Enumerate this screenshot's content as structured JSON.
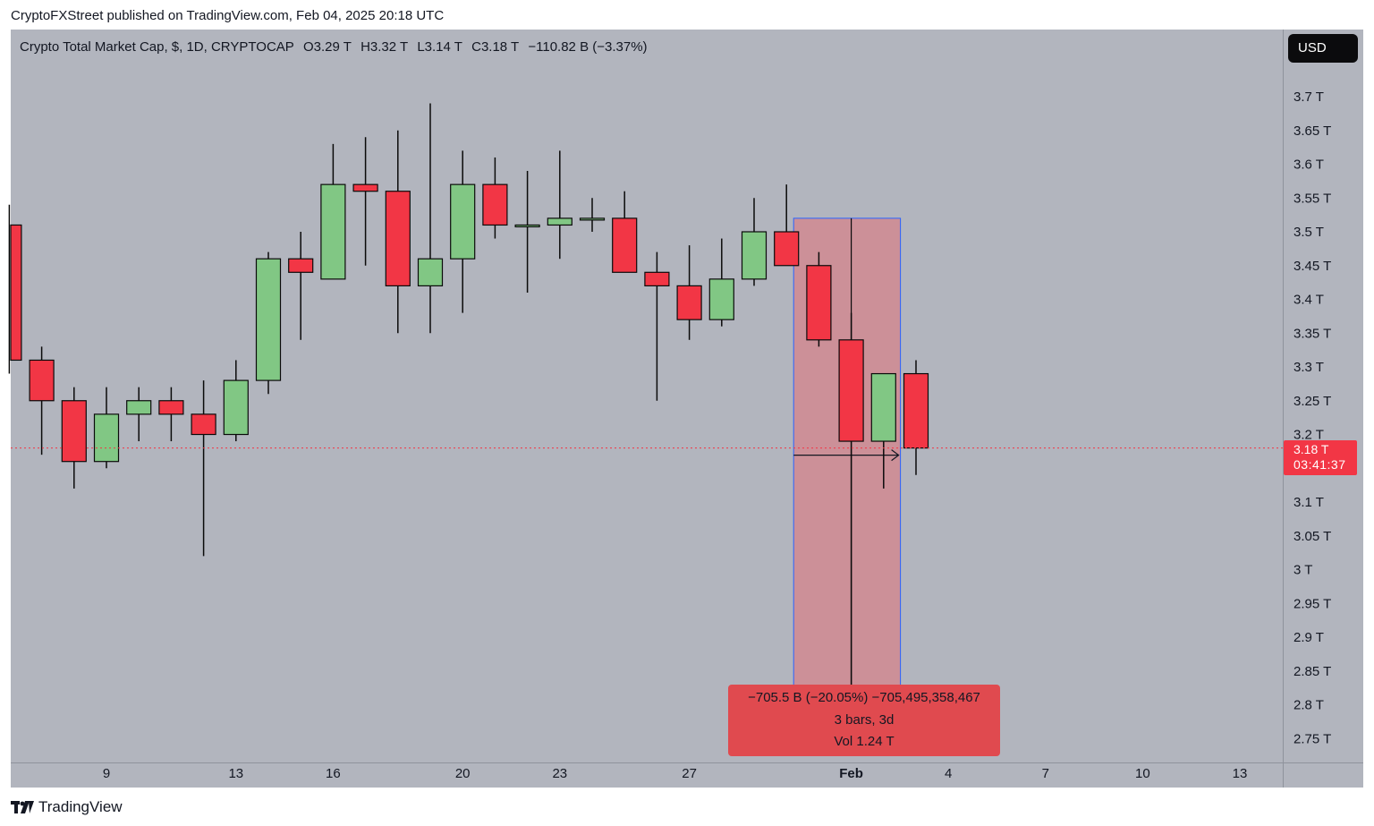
{
  "header": {
    "publisher_line": "CryptoFXStreet published on TradingView.com, Feb 04, 2025 20:18 UTC"
  },
  "legend": {
    "symbol": "Crypto Total Market Cap, $, 1D, CRYPTOCAP",
    "open": "O3.29 T",
    "high": "H3.32 T",
    "low": "L3.14 T",
    "close": "C3.18 T",
    "change": "−110.82 B (−3.37%)"
  },
  "toolbar": {
    "currency": "USD"
  },
  "last_price": {
    "value": "3.18 T",
    "countdown": "03:41:37"
  },
  "measure": {
    "line1": "−705.5 B (−20.05%) −705,495,358,467",
    "line2": "3 bars, 3d",
    "line3": "Vol 1.24 T"
  },
  "footer": {
    "brand": "TradingView"
  },
  "colors": {
    "up": "#81c784",
    "down": "#f23645",
    "background": "#b2b5be",
    "measure_fill": "#d08a92",
    "measure_border": "#2962ff"
  },
  "chart_data": {
    "type": "candlestick",
    "title": "Crypto Total Market Cap, $, 1D, CRYPTOCAP",
    "y_unit": "T",
    "ylim": [
      2.73,
      3.77
    ],
    "y_ticks": [
      "2.75 T",
      "2.8 T",
      "2.85 T",
      "2.9 T",
      "2.95 T",
      "3 T",
      "3.05 T",
      "3.1 T",
      "3.2 T",
      "3.25 T",
      "3.3 T",
      "3.35 T",
      "3.4 T",
      "3.45 T",
      "3.5 T",
      "3.55 T",
      "3.6 T",
      "3.65 T",
      "3.7 T"
    ],
    "x_ticks": [
      "9",
      "13",
      "16",
      "20",
      "23",
      "27",
      "Feb",
      "4",
      "7",
      "10",
      "13"
    ],
    "x_tick_days": [
      9,
      13,
      16,
      20,
      23,
      27,
      32,
      35,
      38,
      41,
      44
    ],
    "candles": [
      {
        "day": 5,
        "o": 3.41,
        "h": 3.5,
        "l": 3.41,
        "c": 3.5
      },
      {
        "day": 6,
        "o": 3.51,
        "h": 3.54,
        "l": 3.29,
        "c": 3.31
      },
      {
        "day": 7,
        "o": 3.31,
        "h": 3.33,
        "l": 3.17,
        "c": 3.25
      },
      {
        "day": 8,
        "o": 3.25,
        "h": 3.27,
        "l": 3.12,
        "c": 3.16
      },
      {
        "day": 9,
        "o": 3.16,
        "h": 3.27,
        "l": 3.15,
        "c": 3.23
      },
      {
        "day": 10,
        "o": 3.23,
        "h": 3.27,
        "l": 3.19,
        "c": 3.25
      },
      {
        "day": 11,
        "o": 3.25,
        "h": 3.27,
        "l": 3.19,
        "c": 3.23
      },
      {
        "day": 12,
        "o": 3.23,
        "h": 3.28,
        "l": 3.02,
        "c": 3.2
      },
      {
        "day": 13,
        "o": 3.2,
        "h": 3.31,
        "l": 3.19,
        "c": 3.28
      },
      {
        "day": 14,
        "o": 3.28,
        "h": 3.47,
        "l": 3.26,
        "c": 3.46
      },
      {
        "day": 15,
        "o": 3.46,
        "h": 3.5,
        "l": 3.34,
        "c": 3.44
      },
      {
        "day": 16,
        "o": 3.43,
        "h": 3.63,
        "l": 3.43,
        "c": 3.57
      },
      {
        "day": 17,
        "o": 3.57,
        "h": 3.64,
        "l": 3.45,
        "c": 3.56
      },
      {
        "day": 18,
        "o": 3.56,
        "h": 3.65,
        "l": 3.35,
        "c": 3.42
      },
      {
        "day": 19,
        "o": 3.42,
        "h": 3.69,
        "l": 3.35,
        "c": 3.46
      },
      {
        "day": 20,
        "o": 3.46,
        "h": 3.62,
        "l": 3.38,
        "c": 3.57
      },
      {
        "day": 21,
        "o": 3.57,
        "h": 3.61,
        "l": 3.49,
        "c": 3.51
      },
      {
        "day": 22,
        "o": 3.51,
        "h": 3.59,
        "l": 3.41,
        "c": 3.51
      },
      {
        "day": 23,
        "o": 3.51,
        "h": 3.62,
        "l": 3.46,
        "c": 3.52
      },
      {
        "day": 24,
        "o": 3.52,
        "h": 3.55,
        "l": 3.5,
        "c": 3.52
      },
      {
        "day": 25,
        "o": 3.52,
        "h": 3.56,
        "l": 3.44,
        "c": 3.44
      },
      {
        "day": 26,
        "o": 3.44,
        "h": 3.47,
        "l": 3.25,
        "c": 3.42
      },
      {
        "day": 27,
        "o": 3.42,
        "h": 3.48,
        "l": 3.34,
        "c": 3.37
      },
      {
        "day": 28,
        "o": 3.37,
        "h": 3.49,
        "l": 3.36,
        "c": 3.43
      },
      {
        "day": 29,
        "o": 3.43,
        "h": 3.55,
        "l": 3.42,
        "c": 3.5
      },
      {
        "day": 30,
        "o": 3.5,
        "h": 3.57,
        "l": 3.45,
        "c": 3.45
      },
      {
        "day": 31,
        "o": 3.45,
        "h": 3.47,
        "l": 3.33,
        "c": 3.34
      },
      {
        "day": 32,
        "o": 3.34,
        "h": 3.38,
        "l": 2.81,
        "c": 3.19
      },
      {
        "day": 33,
        "o": 3.19,
        "h": 3.29,
        "l": 3.12,
        "c": 3.29
      },
      {
        "day": 34,
        "o": 3.29,
        "h": 3.31,
        "l": 3.14,
        "c": 3.18
      }
    ],
    "last_price": 3.18,
    "measure_range": {
      "from_day": 30,
      "to_day": 32,
      "from_price": 3.52,
      "to_price": 2.82
    }
  }
}
